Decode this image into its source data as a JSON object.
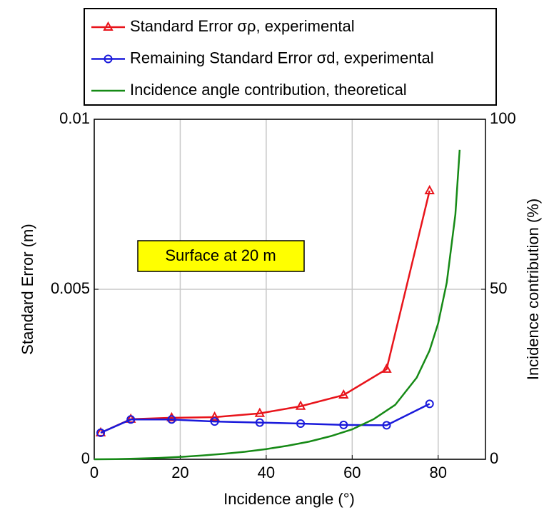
{
  "chart_data": {
    "type": "line",
    "xlabel": "Incidence angle (°)",
    "ylabel": "Standard Error (m)",
    "y2label": "Incidence contribution (%)",
    "annotation": "Surface at 20 m",
    "xlim": [
      0,
      91
    ],
    "xticks": [
      0,
      20,
      40,
      60,
      80
    ],
    "ylim": [
      0,
      0.01
    ],
    "yticks": [
      0,
      0.005,
      0.01
    ],
    "y2lim": [
      0,
      100
    ],
    "y2ticks": [
      0,
      50,
      100
    ],
    "grid": true,
    "legend": "top",
    "series": [
      {
        "name": "Standard Error σρ, experimental",
        "color": "#e8141b",
        "marker": "triangle",
        "x": [
          1.5,
          8.5,
          18,
          28,
          38.5,
          48,
          58,
          68,
          78
        ],
        "values": [
          0.00078,
          0.00118,
          0.00122,
          0.00124,
          0.00135,
          0.00156,
          0.00189,
          0.00265,
          0.0079
        ]
      },
      {
        "name": "Remaining Standard Error σd, experimental",
        "color": "#1a1adb",
        "marker": "circle",
        "x": [
          1.5,
          8.5,
          18,
          28,
          38.5,
          48,
          58,
          68,
          78
        ],
        "values": [
          0.00078,
          0.00117,
          0.00117,
          0.00111,
          0.00108,
          0.00105,
          0.00101,
          0.001,
          0.00163
        ]
      },
      {
        "name": "Incidence angle contribution, theoretical",
        "color": "#168a16",
        "axis": "y2",
        "x": [
          0,
          5,
          10,
          15,
          20,
          25,
          30,
          35,
          40,
          45,
          50,
          55,
          60,
          65,
          70,
          75,
          78,
          80,
          82,
          84,
          85
        ],
        "values": [
          0,
          0.05,
          0.2,
          0.4,
          0.7,
          1.1,
          1.6,
          2.2,
          3,
          4,
          5.2,
          6.8,
          8.8,
          11.8,
          16,
          24,
          32,
          40,
          52,
          72,
          91
        ]
      }
    ]
  }
}
